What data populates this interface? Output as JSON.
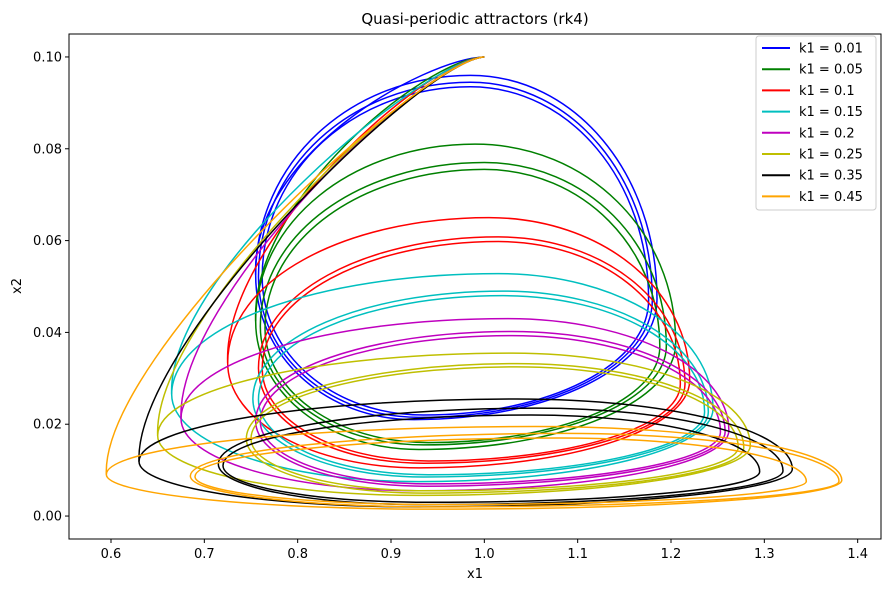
{
  "chart_data": {
    "type": "line",
    "title": "Quasi-periodic attractors (rk4)",
    "xlabel": "x1",
    "ylabel": "x2",
    "xlim": [
      0.555,
      1.425
    ],
    "ylim": [
      -0.005,
      0.105
    ],
    "x_ticks": [
      "0.6",
      "0.7",
      "0.8",
      "0.9",
      "1.0",
      "1.1",
      "1.2",
      "1.3",
      "1.4"
    ],
    "y_ticks": [
      "0.00",
      "0.02",
      "0.04",
      "0.06",
      "0.08",
      "0.10"
    ],
    "grid": false,
    "legend_position": "upper right",
    "start_point": [
      1.0,
      0.1
    ],
    "series": [
      {
        "name": "k1 = 0.01",
        "color": "#0000ff",
        "loops": [
          {
            "left": 0.755,
            "right": 1.185,
            "top": 0.096,
            "bottom": 0.021,
            "xtop": 0.985,
            "xbot": 0.925
          },
          {
            "left": 0.758,
            "right": 1.18,
            "top": 0.0945,
            "bottom": 0.0215,
            "xtop": 0.985,
            "xbot": 0.93
          },
          {
            "left": 0.762,
            "right": 1.176,
            "top": 0.0935,
            "bottom": 0.022,
            "xtop": 0.985,
            "xbot": 0.935
          }
        ]
      },
      {
        "name": "k1 = 0.05",
        "color": "#008000",
        "loops": [
          {
            "left": 0.755,
            "right": 1.205,
            "top": 0.081,
            "bottom": 0.0145,
            "xtop": 0.99,
            "xbot": 0.93
          },
          {
            "left": 0.76,
            "right": 1.195,
            "top": 0.077,
            "bottom": 0.0155,
            "xtop": 1.0,
            "xbot": 0.935
          },
          {
            "left": 0.765,
            "right": 1.188,
            "top": 0.0755,
            "bottom": 0.016,
            "xtop": 1.0,
            "xbot": 0.94
          }
        ]
      },
      {
        "name": "k1 = 0.1",
        "color": "#ff0000",
        "loops": [
          {
            "left": 0.725,
            "right": 1.22,
            "top": 0.065,
            "bottom": 0.0105,
            "xtop": 1.005,
            "xbot": 0.93
          },
          {
            "left": 0.758,
            "right": 1.215,
            "top": 0.0608,
            "bottom": 0.0115,
            "xtop": 1.015,
            "xbot": 0.935
          },
          {
            "left": 0.762,
            "right": 1.21,
            "top": 0.0598,
            "bottom": 0.012,
            "xtop": 1.015,
            "xbot": 0.94
          }
        ]
      },
      {
        "name": "k1 = 0.15",
        "color": "#00bfbf",
        "loops": [
          {
            "left": 0.665,
            "right": 1.245,
            "top": 0.0528,
            "bottom": 0.0075,
            "xtop": 1.015,
            "xbot": 0.93
          },
          {
            "left": 0.752,
            "right": 1.24,
            "top": 0.049,
            "bottom": 0.0085,
            "xtop": 1.02,
            "xbot": 0.935
          },
          {
            "left": 0.758,
            "right": 1.236,
            "top": 0.048,
            "bottom": 0.009,
            "xtop": 1.02,
            "xbot": 0.94
          }
        ]
      },
      {
        "name": "k1 = 0.2",
        "color": "#bf00bf",
        "loops": [
          {
            "left": 0.675,
            "right": 1.262,
            "top": 0.043,
            "bottom": 0.0055,
            "xtop": 1.025,
            "xbot": 0.93
          },
          {
            "left": 0.755,
            "right": 1.258,
            "top": 0.0402,
            "bottom": 0.0065,
            "xtop": 1.03,
            "xbot": 0.935
          },
          {
            "left": 0.76,
            "right": 1.253,
            "top": 0.0393,
            "bottom": 0.007,
            "xtop": 1.03,
            "xbot": 0.94
          }
        ]
      },
      {
        "name": "k1 = 0.25",
        "color": "#bfbf00",
        "loops": [
          {
            "left": 0.65,
            "right": 1.285,
            "top": 0.0355,
            "bottom": 0.0045,
            "xtop": 1.03,
            "xbot": 0.93
          },
          {
            "left": 0.745,
            "right": 1.278,
            "top": 0.0332,
            "bottom": 0.005,
            "xtop": 1.035,
            "xbot": 0.935
          },
          {
            "left": 0.75,
            "right": 1.272,
            "top": 0.0325,
            "bottom": 0.0055,
            "xtop": 1.035,
            "xbot": 0.94
          }
        ]
      },
      {
        "name": "k1 = 0.35",
        "color": "#000000",
        "loops": [
          {
            "left": 0.63,
            "right": 1.33,
            "top": 0.0255,
            "bottom": 0.002,
            "xtop": 1.035,
            "xbot": 0.93
          },
          {
            "left": 0.715,
            "right": 1.32,
            "top": 0.0235,
            "bottom": 0.0025,
            "xtop": 1.055,
            "xbot": 0.935
          },
          {
            "left": 0.72,
            "right": 1.295,
            "top": 0.022,
            "bottom": 0.003,
            "xtop": 1.05,
            "xbot": 0.94
          }
        ]
      },
      {
        "name": "k1 = 0.45",
        "color": "#ffa500",
        "loops": [
          {
            "left": 0.595,
            "right": 1.383,
            "top": 0.0195,
            "bottom": 0.0015,
            "xtop": 1.055,
            "xbot": 0.95
          },
          {
            "left": 0.685,
            "right": 1.38,
            "top": 0.018,
            "bottom": 0.002,
            "xtop": 1.085,
            "xbot": 0.95
          },
          {
            "left": 0.69,
            "right": 1.345,
            "top": 0.017,
            "bottom": 0.0025,
            "xtop": 1.08,
            "xbot": 0.955
          }
        ]
      }
    ]
  }
}
